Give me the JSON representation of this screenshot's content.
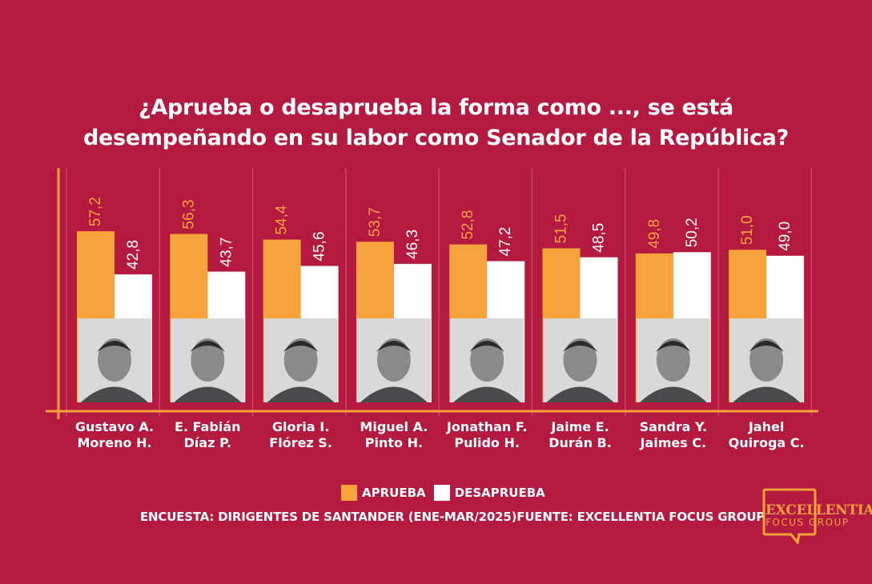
{
  "title": {
    "line1": "¿Aprueba o desaprueba la forma como ..., se está",
    "line2": "desempeñando en su labor como Senador de la República?"
  },
  "legend": {
    "approve": "APRUEBA",
    "disapprove": "DESAPRUEBA"
  },
  "source": "ENCUESTA: DIRIGENTES DE SANTANDER (ENE-MAR/2025)FUENTE: EXCELLENTIA FOCUS GROUP",
  "logo": {
    "line1": "EXCELLENTIA",
    "line2": "FOCUS GROUP"
  },
  "colors": {
    "background": "#b41a40",
    "approve": "#f7a33c",
    "disapprove": "#ffffff",
    "axis": "#f7a33c"
  },
  "chart_data": {
    "type": "bar",
    "title": "¿Aprueba o desaprueba la forma como ..., se está desempeñando en su labor como Senador de la República?",
    "categories": [
      [
        "Gustavo A.",
        "Moreno H."
      ],
      [
        "E. Fabián",
        "Díaz P."
      ],
      [
        "Gloria I.",
        "Flórez S."
      ],
      [
        "Miguel A.",
        "Pinto H."
      ],
      [
        "Jonathan F.",
        "Pulido H."
      ],
      [
        "Jaime E.",
        "Durán B."
      ],
      [
        "Sandra Y.",
        "Jaimes C."
      ],
      [
        "Jahel",
        "Quiroga C."
      ]
    ],
    "series": [
      {
        "name": "APRUEBA",
        "color": "#f7a33c",
        "values": [
          57.2,
          56.3,
          54.4,
          53.7,
          52.8,
          51.5,
          49.8,
          51.0
        ],
        "labels": [
          "57,2",
          "56,3",
          "54,4",
          "53,7",
          "52,8",
          "51,5",
          "49,8",
          "51,0"
        ]
      },
      {
        "name": "DESAPRUEBA",
        "color": "#ffffff",
        "values": [
          42.8,
          43.7,
          45.6,
          46.3,
          47.2,
          48.5,
          50.2,
          49.0
        ],
        "labels": [
          "42,8",
          "43,7",
          "45,6",
          "46,3",
          "47,2",
          "48,5",
          "50,2",
          "49,0"
        ]
      }
    ],
    "gridlines": true,
    "legend_position": "bottom-center"
  }
}
